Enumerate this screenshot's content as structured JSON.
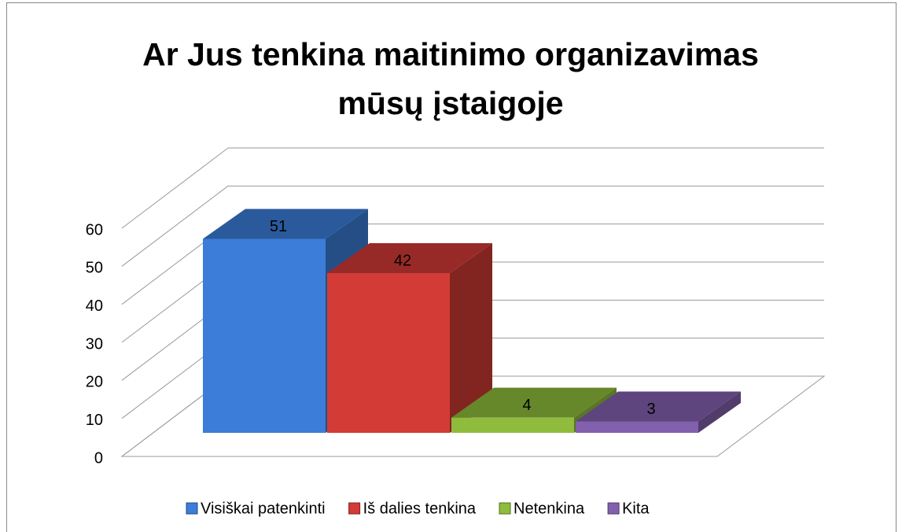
{
  "chart_data": {
    "type": "bar",
    "title": "Ar Jus tenkina maitinimo organizavimas mūsų įstaigoje",
    "categories": [
      null
    ],
    "series": [
      {
        "name": "Visiškai patenkinti",
        "color": "#3b7dd8",
        "values": [
          51
        ]
      },
      {
        "name": "Iš dalies tenkina",
        "color": "#d23b36",
        "values": [
          42
        ]
      },
      {
        "name": "Netenkina",
        "color": "#8fbc3c",
        "values": [
          4
        ]
      },
      {
        "name": "Kita",
        "color": "#8360ad",
        "values": [
          3
        ]
      }
    ],
    "ylim": [
      0,
      60
    ],
    "yticks": [
      0,
      10,
      20,
      30,
      40,
      50,
      60
    ],
    "grid": true,
    "legend": "bottom"
  }
}
